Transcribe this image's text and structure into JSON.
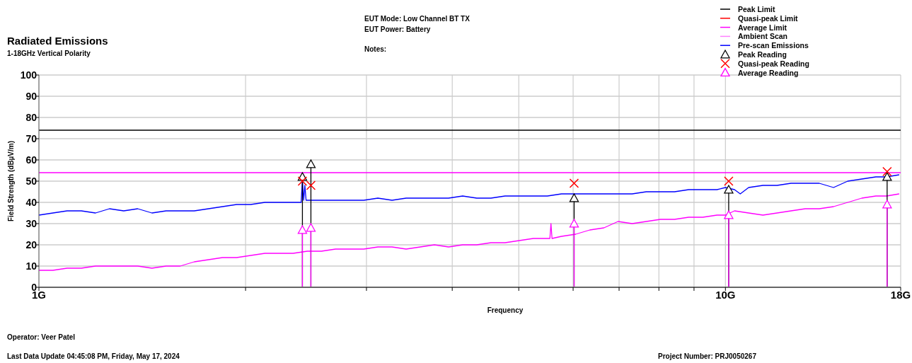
{
  "chart_data": {
    "type": "line",
    "title": "Radiated Emissions",
    "subtitle": "1-18GHz Vertical Polarity",
    "xlabel": "Frequency",
    "ylabel": "Field Strength (dBµV/m)",
    "annotations": [
      "EUT Mode: Low Channel BT TX",
      "EUT Power: Battery",
      "Notes:",
      "Operator: Veer Patel",
      "Last Data Update 04:45:08 PM, Friday, May 17, 2024",
      "Project Number: PRJ0050267"
    ],
    "log": "x",
    "grid": true,
    "legend": "top right",
    "xlim": [
      1,
      18
    ],
    "ylim": [
      0,
      100
    ],
    "xticks": [
      {
        "value": 1,
        "label": "1G"
      },
      {
        "value": 2,
        "label": null
      },
      {
        "value": 3,
        "label": null
      },
      {
        "value": 4,
        "label": null
      },
      {
        "value": 5,
        "label": null
      },
      {
        "value": 6,
        "label": null
      },
      {
        "value": 7,
        "label": null
      },
      {
        "value": 8,
        "label": null
      },
      {
        "value": 9,
        "label": null
      },
      {
        "value": 10,
        "label": "10G"
      },
      {
        "value": 18,
        "label": "18G"
      }
    ],
    "yticks": [
      0,
      10,
      20,
      30,
      40,
      50,
      60,
      70,
      80,
      90,
      100
    ],
    "series": [
      {
        "name": "Peak Limit",
        "color": "#000000",
        "x": [
          1,
          18
        ],
        "values": [
          74,
          74
        ]
      },
      {
        "name": "Quasi-peak Limit",
        "color": "#ff0000"
      },
      {
        "name": "Average Limit",
        "color": "#ff00ff",
        "x": [
          1,
          18
        ],
        "values": [
          54,
          54
        ]
      },
      {
        "name": "Ambient Scan",
        "color": "#ff80ff"
      },
      {
        "color": "#ff00ff",
        "x": [
          1.0,
          1.048,
          1.099,
          1.153,
          1.209,
          1.267,
          1.329,
          1.393,
          1.461,
          1.532,
          1.606,
          1.684,
          1.766,
          1.851,
          1.941,
          2.035,
          2.134,
          2.237,
          2.346,
          2.46,
          2.579,
          2.704,
          2.836,
          2.973,
          3.117,
          3.269,
          3.427,
          3.593,
          3.768,
          3.951,
          4.142,
          4.343,
          4.554,
          4.775,
          5.007,
          5.25,
          5.5,
          5.55,
          5.57,
          5.59,
          5.771,
          6.051,
          6.345,
          6.653,
          6.975,
          7.314,
          7.669,
          8.041,
          8.431,
          8.84,
          9.27,
          9.72,
          10.0,
          10.31,
          10.81,
          11.34,
          11.89,
          12.46,
          13.07,
          13.7,
          14.37,
          15.07,
          15.8,
          16.56,
          17.17,
          17.91
        ],
        "values": [
          8,
          8,
          9,
          9,
          10,
          10,
          10,
          10,
          9,
          10,
          10,
          12,
          13,
          14,
          14,
          15,
          16,
          16,
          16,
          17,
          17,
          18,
          18,
          18,
          19,
          19,
          18,
          19,
          20,
          19,
          20,
          20,
          21,
          21,
          22,
          23,
          23,
          23,
          30,
          23,
          24,
          25,
          27,
          28,
          31,
          30,
          31,
          32,
          32,
          33,
          33,
          34,
          34,
          36,
          35,
          34,
          35,
          36,
          37,
          37,
          38,
          40,
          42,
          43,
          43,
          44
        ]
      },
      {
        "name": "Pre-scan Emissions",
        "color": "#0000ff",
        "x": [
          1.0,
          1.048,
          1.099,
          1.153,
          1.209,
          1.267,
          1.329,
          1.393,
          1.461,
          1.532,
          1.606,
          1.684,
          1.766,
          1.851,
          1.941,
          2.035,
          2.134,
          2.237,
          2.346,
          2.41,
          2.42,
          2.43,
          2.44,
          2.45,
          2.579,
          2.704,
          2.836,
          2.973,
          3.117,
          3.269,
          3.427,
          3.593,
          3.768,
          3.951,
          4.142,
          4.343,
          4.554,
          4.775,
          5.007,
          5.25,
          5.504,
          5.771,
          6.051,
          6.345,
          6.653,
          6.975,
          7.314,
          7.669,
          8.041,
          8.431,
          8.84,
          9.27,
          9.72,
          10.0,
          10.31,
          10.51,
          10.81,
          11.34,
          11.89,
          12.46,
          13.07,
          13.7,
          14.37,
          15.07,
          15.8,
          16.56,
          17.17,
          17.91
        ],
        "values": [
          34,
          35,
          36,
          36,
          35,
          37,
          36,
          37,
          35,
          36,
          36,
          36,
          37,
          38,
          39,
          39,
          40,
          40,
          40,
          40,
          51,
          41,
          48,
          41,
          41,
          41,
          41,
          41,
          42,
          41,
          42,
          42,
          42,
          42,
          43,
          42,
          42,
          43,
          43,
          43,
          43,
          44,
          44,
          44,
          44,
          44,
          44,
          45,
          45,
          45,
          46,
          46,
          46,
          47,
          46,
          44,
          47,
          48,
          48,
          49,
          49,
          49,
          47,
          50,
          51,
          52,
          52,
          53
        ]
      },
      {
        "name": "Peak Reading",
        "type": "lollipop",
        "marker": "triangle",
        "color": "#000000",
        "x": [
          2.42,
          2.49,
          6.02,
          10.11,
          17.2
        ],
        "values": [
          52,
          58,
          42,
          46,
          52
        ]
      },
      {
        "name": "Quasi-peak Reading",
        "type": "scatter",
        "marker": "cross",
        "color": "#ff0000",
        "x": [
          2.42,
          2.49,
          6.02,
          10.11,
          17.2
        ],
        "values": [
          50,
          48,
          49,
          50,
          54.5
        ]
      },
      {
        "name": "Average Reading",
        "type": "lollipop",
        "marker": "triangle",
        "color": "#ff00ff",
        "x": [
          2.42,
          2.49,
          6.02,
          10.11,
          17.2
        ],
        "values": [
          27,
          28,
          30,
          34,
          39
        ]
      }
    ]
  }
}
